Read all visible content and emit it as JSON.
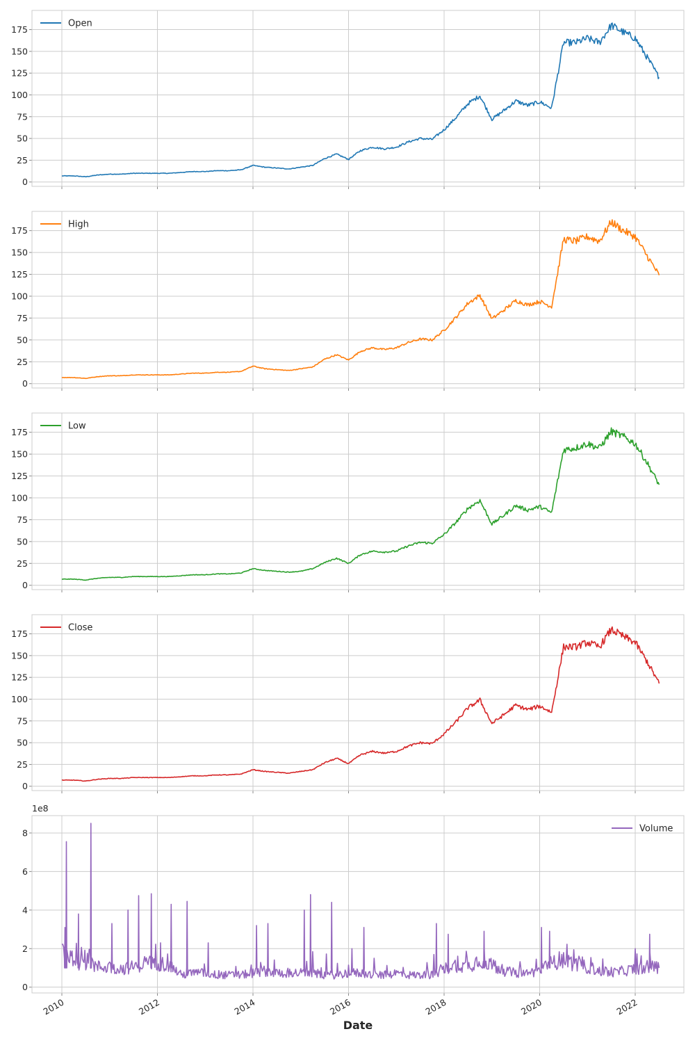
{
  "chart_data": {
    "type": "line",
    "layout": "5 stacked subplots sharing x-axis",
    "grid": true,
    "xlabel": "Date",
    "x_ticks": [
      "2010",
      "2012",
      "2014",
      "2016",
      "2018",
      "2020",
      "2022"
    ],
    "xlim": [
      "2009-06",
      "2023-02"
    ],
    "panels": [
      {
        "series": "Open",
        "color": "#1f77b4",
        "ylim": [
          -5,
          197
        ],
        "y_ticks": [
          0,
          25,
          50,
          75,
          100,
          125,
          150,
          175
        ],
        "legend": "top-left",
        "x": [
          "2010-01",
          "2010-04",
          "2010-07",
          "2010-10",
          "2011-01",
          "2011-04",
          "2011-07",
          "2011-10",
          "2012-01",
          "2012-04",
          "2012-07",
          "2012-10",
          "2013-01",
          "2013-04",
          "2013-07",
          "2013-10",
          "2014-01",
          "2014-04",
          "2014-07",
          "2014-10",
          "2015-01",
          "2015-04",
          "2015-07",
          "2015-10",
          "2016-01",
          "2016-04",
          "2016-07",
          "2016-10",
          "2017-01",
          "2017-04",
          "2017-07",
          "2017-10",
          "2018-01",
          "2018-04",
          "2018-07",
          "2018-10",
          "2019-01",
          "2019-04",
          "2019-07",
          "2019-10",
          "2020-01",
          "2020-04",
          "2020-07",
          "2020-10",
          "2021-01",
          "2021-04",
          "2021-07",
          "2021-10",
          "2022-01",
          "2022-04",
          "2022-07"
        ],
        "values": [
          7,
          7,
          6,
          8,
          9,
          9,
          10,
          10,
          10,
          10,
          11,
          12,
          12,
          13,
          13,
          14,
          19,
          17,
          16,
          15,
          17,
          19,
          27,
          32,
          26,
          36,
          40,
          38,
          40,
          46,
          50,
          49,
          60,
          74,
          90,
          99,
          72,
          82,
          93,
          88,
          92,
          85,
          160,
          160,
          165,
          160,
          180,
          172,
          165,
          143,
          120
        ]
      },
      {
        "series": "High",
        "color": "#ff7f0e",
        "ylim": [
          -5,
          197
        ],
        "y_ticks": [
          0,
          25,
          50,
          75,
          100,
          125,
          150,
          175
        ],
        "legend": "top-left",
        "x": [
          "2010-01",
          "2010-04",
          "2010-07",
          "2010-10",
          "2011-01",
          "2011-04",
          "2011-07",
          "2011-10",
          "2012-01",
          "2012-04",
          "2012-07",
          "2012-10",
          "2013-01",
          "2013-04",
          "2013-07",
          "2013-10",
          "2014-01",
          "2014-04",
          "2014-07",
          "2014-10",
          "2015-01",
          "2015-04",
          "2015-07",
          "2015-10",
          "2016-01",
          "2016-04",
          "2016-07",
          "2016-10",
          "2017-01",
          "2017-04",
          "2017-07",
          "2017-10",
          "2018-01",
          "2018-04",
          "2018-07",
          "2018-10",
          "2019-01",
          "2019-04",
          "2019-07",
          "2019-10",
          "2020-01",
          "2020-04",
          "2020-07",
          "2020-10",
          "2021-01",
          "2021-04",
          "2021-07",
          "2021-10",
          "2022-01",
          "2022-04",
          "2022-07"
        ],
        "values": [
          7,
          7,
          6,
          8,
          9,
          9,
          10,
          10,
          10,
          10,
          11,
          12,
          12,
          13,
          13,
          14,
          20,
          17,
          16,
          15,
          17,
          19,
          28,
          33,
          27,
          37,
          41,
          39,
          41,
          47,
          51,
          50,
          61,
          76,
          92,
          101,
          74,
          84,
          95,
          90,
          94,
          88,
          165,
          163,
          168,
          163,
          185,
          175,
          168,
          146,
          124
        ]
      },
      {
        "series": "Low",
        "color": "#2ca02c",
        "ylim": [
          -5,
          197
        ],
        "y_ticks": [
          0,
          25,
          50,
          75,
          100,
          125,
          150,
          175
        ],
        "legend": "top-left",
        "x": [
          "2010-01",
          "2010-04",
          "2010-07",
          "2010-10",
          "2011-01",
          "2011-04",
          "2011-07",
          "2011-10",
          "2012-01",
          "2012-04",
          "2012-07",
          "2012-10",
          "2013-01",
          "2013-04",
          "2013-07",
          "2013-10",
          "2014-01",
          "2014-04",
          "2014-07",
          "2014-10",
          "2015-01",
          "2015-04",
          "2015-07",
          "2015-10",
          "2016-01",
          "2016-04",
          "2016-07",
          "2016-10",
          "2017-01",
          "2017-04",
          "2017-07",
          "2017-10",
          "2018-01",
          "2018-04",
          "2018-07",
          "2018-10",
          "2019-01",
          "2019-04",
          "2019-07",
          "2019-10",
          "2020-01",
          "2020-04",
          "2020-07",
          "2020-10",
          "2021-01",
          "2021-04",
          "2021-07",
          "2021-10",
          "2022-01",
          "2022-04",
          "2022-07"
        ],
        "values": [
          7,
          7,
          6,
          8,
          9,
          9,
          10,
          10,
          10,
          10,
          11,
          12,
          12,
          13,
          13,
          14,
          19,
          17,
          16,
          15,
          16,
          19,
          26,
          31,
          25,
          35,
          39,
          38,
          39,
          45,
          49,
          48,
          58,
          72,
          88,
          97,
          70,
          80,
          91,
          86,
          90,
          83,
          155,
          157,
          162,
          157,
          176,
          170,
          162,
          140,
          115
        ]
      },
      {
        "series": "Close",
        "color": "#d62728",
        "ylim": [
          -5,
          197
        ],
        "y_ticks": [
          0,
          25,
          50,
          75,
          100,
          125,
          150,
          175
        ],
        "legend": "top-left",
        "x": [
          "2010-01",
          "2010-04",
          "2010-07",
          "2010-10",
          "2011-01",
          "2011-04",
          "2011-07",
          "2011-10",
          "2012-01",
          "2012-04",
          "2012-07",
          "2012-10",
          "2013-01",
          "2013-04",
          "2013-07",
          "2013-10",
          "2014-01",
          "2014-04",
          "2014-07",
          "2014-10",
          "2015-01",
          "2015-04",
          "2015-07",
          "2015-10",
          "2016-01",
          "2016-04",
          "2016-07",
          "2016-10",
          "2017-01",
          "2017-04",
          "2017-07",
          "2017-10",
          "2018-01",
          "2018-04",
          "2018-07",
          "2018-10",
          "2019-01",
          "2019-04",
          "2019-07",
          "2019-10",
          "2020-01",
          "2020-04",
          "2020-07",
          "2020-10",
          "2021-01",
          "2021-04",
          "2021-07",
          "2021-10",
          "2022-01",
          "2022-04",
          "2022-07"
        ],
        "values": [
          7,
          7,
          6,
          8,
          9,
          9,
          10,
          10,
          10,
          10,
          11,
          12,
          12,
          13,
          13,
          14,
          19,
          17,
          16,
          15,
          17,
          19,
          27,
          32,
          26,
          36,
          40,
          38,
          40,
          46,
          50,
          49,
          60,
          74,
          90,
          99,
          72,
          82,
          93,
          88,
          92,
          85,
          160,
          160,
          165,
          160,
          180,
          172,
          165,
          143,
          118
        ]
      },
      {
        "series": "Volume",
        "color": "#9467bd",
        "ylim": [
          -0.3,
          8.9
        ],
        "y_ticks": [
          0,
          2,
          4,
          6,
          8
        ],
        "y_offset_label": "1e8",
        "legend": "top-right",
        "x": [
          "2010-01",
          "2010-04",
          "2010-07",
          "2010-10",
          "2011-01",
          "2011-04",
          "2011-07",
          "2011-10",
          "2012-01",
          "2012-04",
          "2012-07",
          "2012-10",
          "2013-01",
          "2013-04",
          "2013-07",
          "2013-10",
          "2014-01",
          "2014-04",
          "2014-07",
          "2014-10",
          "2015-01",
          "2015-04",
          "2015-07",
          "2015-10",
          "2016-01",
          "2016-04",
          "2016-07",
          "2016-10",
          "2017-01",
          "2017-04",
          "2017-07",
          "2017-10",
          "2018-01",
          "2018-04",
          "2018-07",
          "2018-10",
          "2019-01",
          "2019-04",
          "2019-07",
          "2019-10",
          "2020-01",
          "2020-04",
          "2020-07",
          "2020-10",
          "2021-01",
          "2021-04",
          "2021-07",
          "2021-10",
          "2022-01",
          "2022-04",
          "2022-07"
        ],
        "values": [
          2.0,
          1.3,
          1.2,
          1.0,
          1.0,
          0.9,
          1.0,
          1.2,
          1.2,
          1.1,
          0.6,
          0.7,
          0.7,
          0.6,
          0.6,
          0.6,
          0.7,
          0.8,
          0.7,
          0.7,
          0.7,
          0.7,
          0.6,
          0.6,
          0.7,
          0.7,
          0.6,
          0.6,
          0.7,
          0.6,
          0.6,
          0.6,
          0.9,
          1.1,
          1.0,
          1.4,
          1.1,
          0.8,
          0.7,
          0.7,
          0.8,
          1.2,
          1.4,
          1.1,
          1.0,
          0.8,
          0.7,
          0.8,
          0.9,
          1.0,
          1.0
        ],
        "spikes": [
          {
            "x": "2010-01-25",
            "value": 3.1
          },
          {
            "x": "2010-02-05",
            "value": 7.55
          },
          {
            "x": "2010-05-06",
            "value": 3.8
          },
          {
            "x": "2010-08-10",
            "value": 8.5
          },
          {
            "x": "2011-01-18",
            "value": 3.3
          },
          {
            "x": "2011-05-20",
            "value": 4.0
          },
          {
            "x": "2011-08-10",
            "value": 4.75
          },
          {
            "x": "2011-11-15",
            "value": 4.85
          },
          {
            "x": "2012-01-25",
            "value": 2.3
          },
          {
            "x": "2012-04-15",
            "value": 4.3
          },
          {
            "x": "2012-08-15",
            "value": 4.45
          },
          {
            "x": "2013-01-24",
            "value": 2.3
          },
          {
            "x": "2014-01-28",
            "value": 3.2
          },
          {
            "x": "2014-04-24",
            "value": 3.3
          },
          {
            "x": "2015-01-28",
            "value": 4.0
          },
          {
            "x": "2015-03-15",
            "value": 4.8
          },
          {
            "x": "2015-08-24",
            "value": 4.4
          },
          {
            "x": "2016-01-27",
            "value": 2.0
          },
          {
            "x": "2016-04-27",
            "value": 3.1
          },
          {
            "x": "2017-11-03",
            "value": 3.3
          },
          {
            "x": "2018-02-02",
            "value": 2.75
          },
          {
            "x": "2018-11-02",
            "value": 2.9
          },
          {
            "x": "2020-01-15",
            "value": 3.1
          },
          {
            "x": "2020-03-16",
            "value": 2.9
          },
          {
            "x": "2022-04-20",
            "value": 2.75
          }
        ]
      }
    ]
  }
}
